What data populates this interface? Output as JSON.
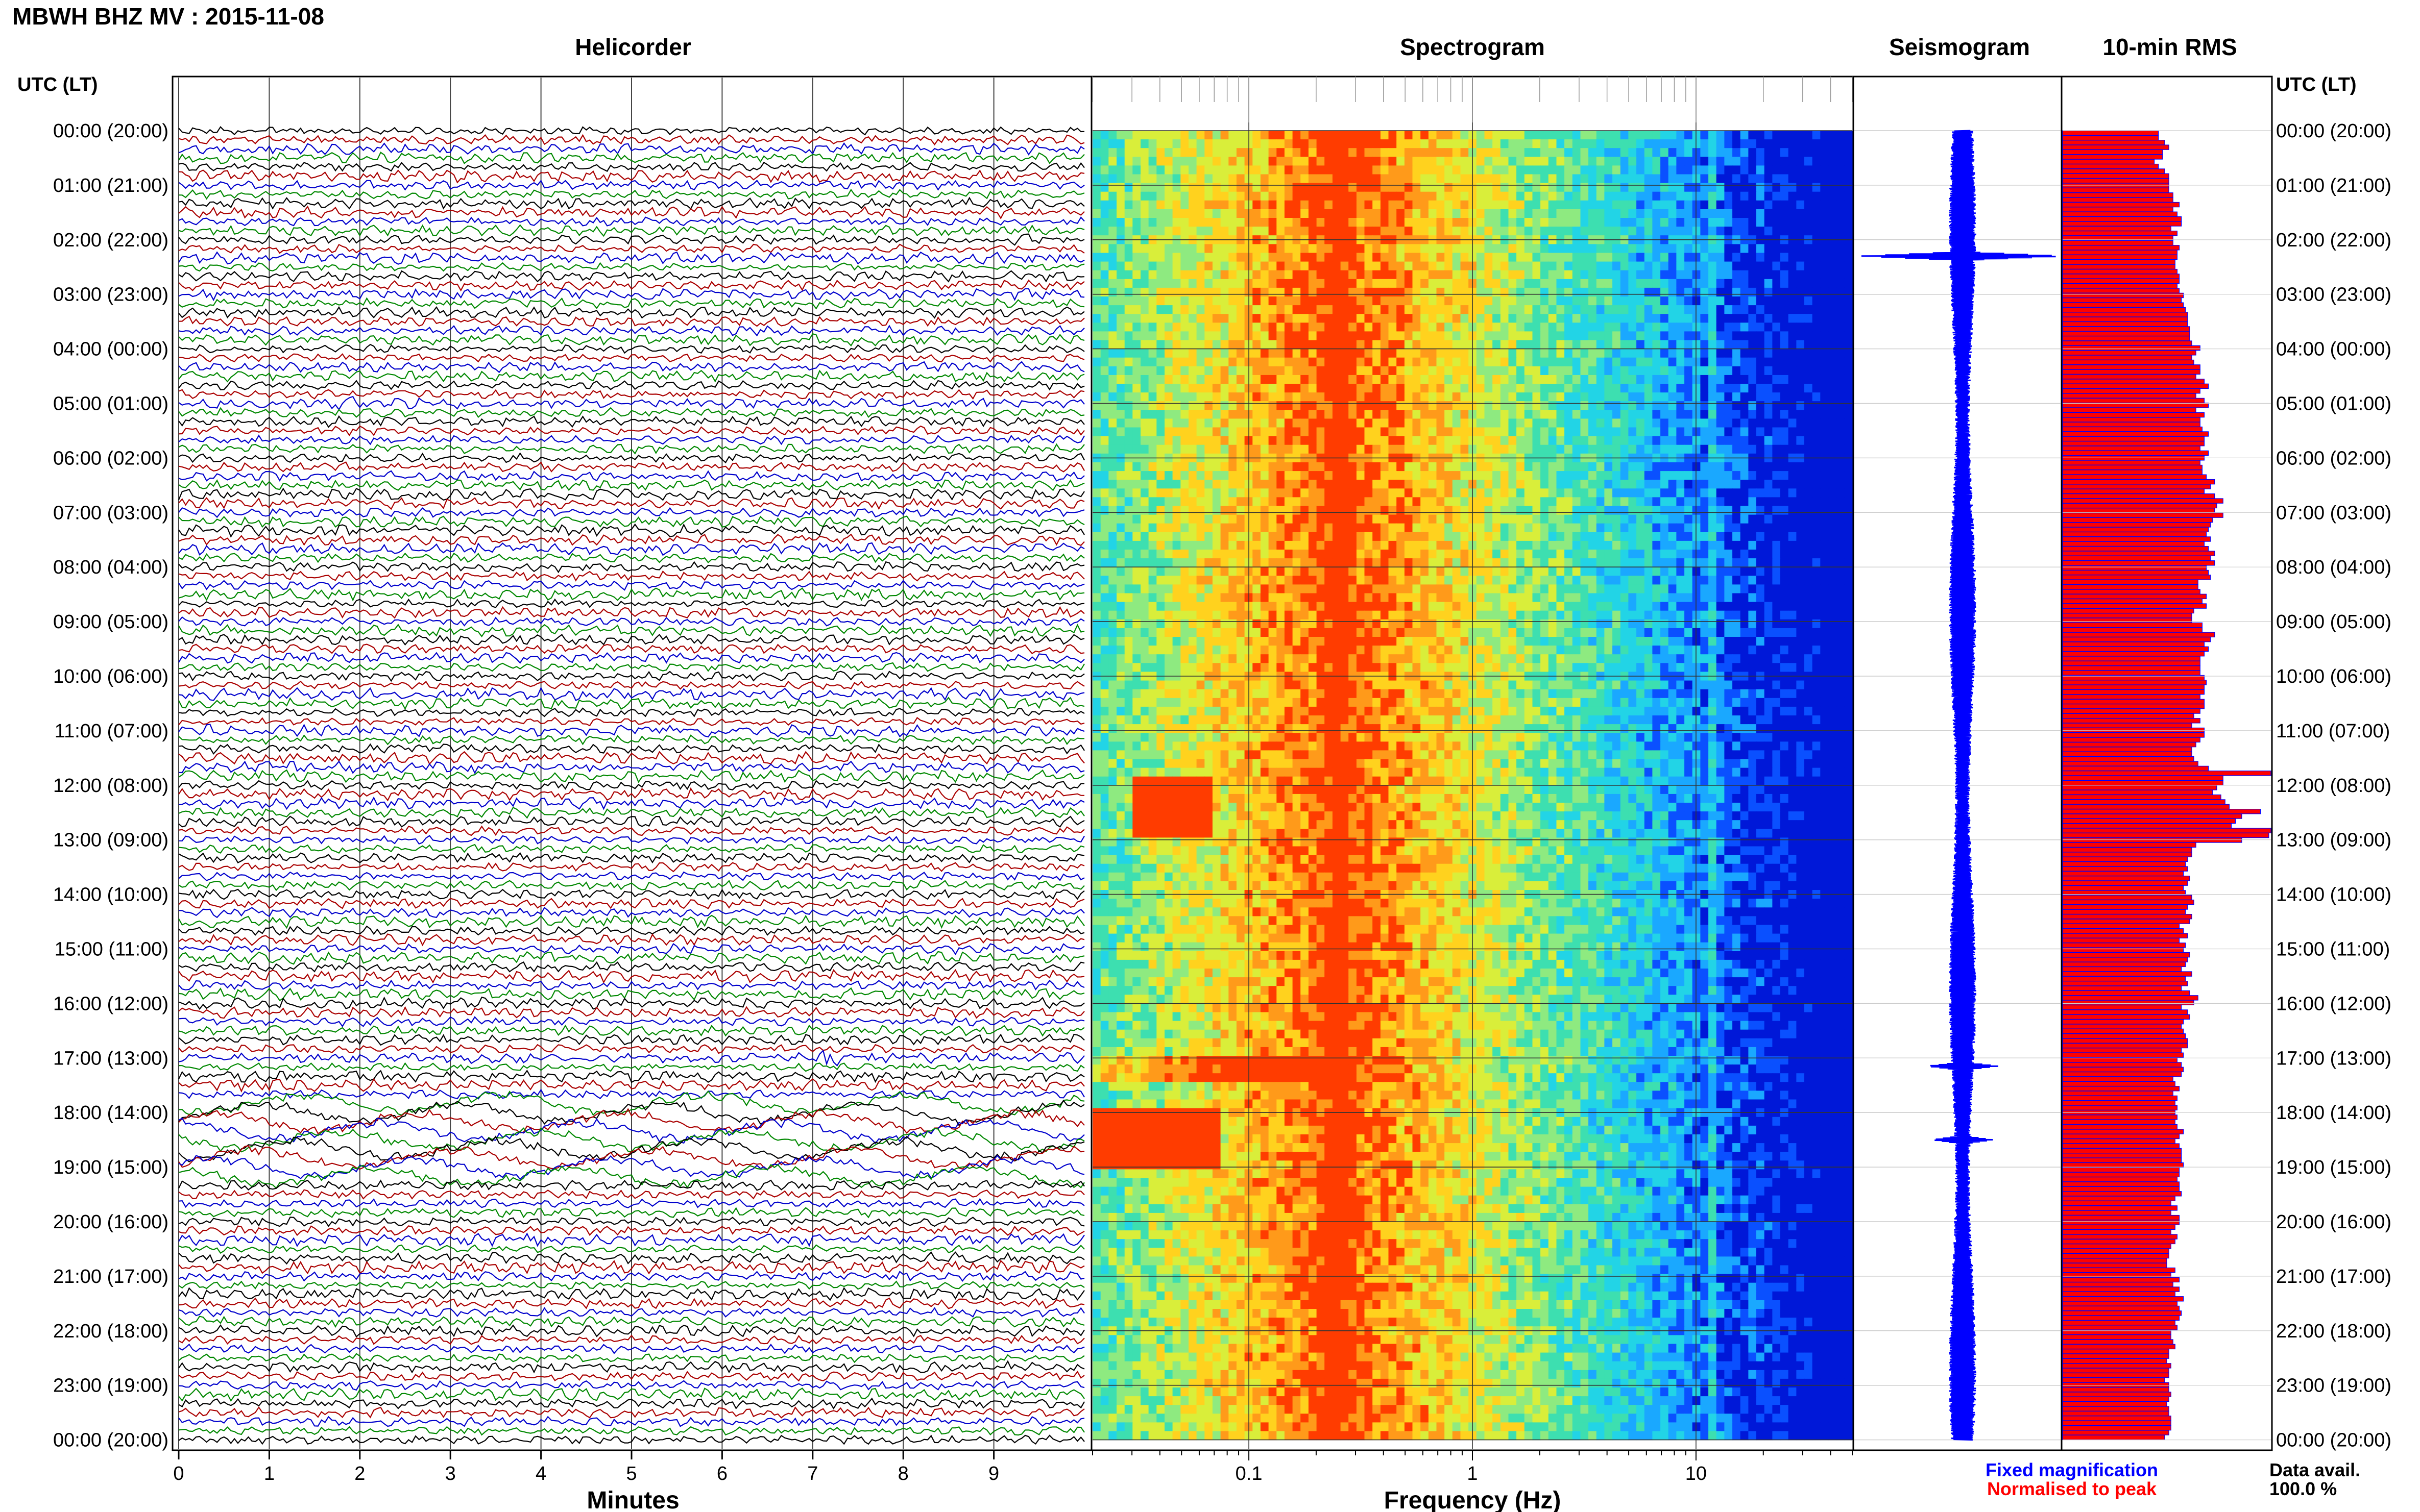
{
  "title": "MBWH BHZ MV : 2015-11-08",
  "panels": {
    "helicorder": "Helicorder",
    "spectrogram": "Spectrogram",
    "seismogram": "Seismogram",
    "rms": "10-min RMS"
  },
  "time_axis_header": "UTC (LT)",
  "hour_labels": [
    "00:00 (20:00)",
    "01:00 (21:00)",
    "02:00 (22:00)",
    "03:00 (23:00)",
    "04:00 (00:00)",
    "05:00 (01:00)",
    "06:00 (02:00)",
    "07:00 (03:00)",
    "08:00 (04:00)",
    "09:00 (05:00)",
    "10:00 (06:00)",
    "11:00 (07:00)",
    "12:00 (08:00)",
    "13:00 (09:00)",
    "14:00 (10:00)",
    "15:00 (11:00)",
    "16:00 (12:00)",
    "17:00 (13:00)",
    "18:00 (14:00)",
    "19:00 (15:00)",
    "20:00 (16:00)",
    "21:00 (17:00)",
    "22:00 (18:00)",
    "23:00 (19:00)",
    "00:00 (20:00)"
  ],
  "legend": {
    "fixed": "Fixed magnification",
    "normalised": "Normalised to peak"
  },
  "data_avail": {
    "label": "Data avail.",
    "value": "100.0 %"
  },
  "colors": {
    "trace_cycle": [
      "#000000",
      "#aa0000",
      "#0000cc",
      "#008800"
    ],
    "seismogram": "#0000ff",
    "rms_fill": "#ff0000",
    "rms_edge": "#0000ff"
  },
  "chart_data": [
    {
      "type": "line",
      "panel": "helicorder",
      "xlabel": "Minutes",
      "x_ticks": [
        0,
        1,
        2,
        3,
        4,
        5,
        6,
        7,
        8,
        9
      ],
      "xlim": [
        0,
        10
      ],
      "traces_per_hour": 6,
      "hours": 24,
      "events": [
        {
          "hour": 2,
          "minute": 9.3,
          "note": "red spike"
        },
        {
          "hour": 5,
          "minute": 1.8,
          "note": "red spike"
        },
        {
          "hour": 17,
          "minute": 7.2,
          "note": "blue burst"
        },
        {
          "hour": 18,
          "minute": 0.0,
          "note": "long-period oscillation"
        }
      ]
    },
    {
      "type": "heatmap",
      "panel": "spectrogram",
      "xlabel": "Frequency (Hz)",
      "xscale": "log",
      "x_ticks": [
        0.1,
        1,
        10
      ],
      "x_tick_labels": [
        "0.1",
        "1",
        "10"
      ],
      "xlim": [
        0.02,
        50
      ],
      "peak_band_hz": 0.25,
      "secondary_line_hz": 12,
      "colormap": [
        "#0018d8",
        "#0a50ff",
        "#1aa8ff",
        "#22d4e6",
        "#3ddfb0",
        "#8eea80",
        "#d9ee3a",
        "#ffd21e",
        "#ff9a1a",
        "#ff3c00"
      ],
      "bursts": [
        {
          "hour_start": 11.7,
          "hour_end": 12.9,
          "freq_low": 0.03,
          "freq_high": 0.07
        },
        {
          "hour_start": 17.9,
          "hour_end": 19.0,
          "freq_low": 0.02,
          "freq_high": 0.075
        }
      ]
    },
    {
      "type": "line",
      "panel": "seismogram",
      "envelope_events": [
        {
          "hour": 2.3,
          "amplitude": 1.0
        },
        {
          "hour": 17.15,
          "amplitude": 0.35
        },
        {
          "hour": 18.5,
          "amplitude": 0.3
        }
      ]
    },
    {
      "type": "bar",
      "panel": "rms",
      "orientation": "horizontal",
      "series": [
        {
          "values": [
            0.46,
            0.46,
            0.49,
            0.51,
            0.48,
            0.48,
            0.44,
            0.46,
            0.49,
            0.51,
            0.51,
            0.51,
            0.51,
            0.53,
            0.53,
            0.56,
            0.53,
            0.55,
            0.57,
            0.57,
            0.52,
            0.55,
            0.53,
            0.53,
            0.56,
            0.55,
            0.55,
            0.54,
            0.54,
            0.55,
            0.56,
            0.56,
            0.55,
            0.56,
            0.58,
            0.57,
            0.58,
            0.59,
            0.6,
            0.6,
            0.6,
            0.61,
            0.61,
            0.61,
            0.62,
            0.66,
            0.64,
            0.62,
            0.63,
            0.66,
            0.66,
            0.64,
            0.68,
            0.7,
            0.66,
            0.64,
            0.68,
            0.7,
            0.64,
            0.68,
            0.66,
            0.66,
            0.67,
            0.7,
            0.68,
            0.68,
            0.66,
            0.7,
            0.68,
            0.66,
            0.67,
            0.67,
            0.69,
            0.73,
            0.71,
            0.68,
            0.73,
            0.77,
            0.74,
            0.73,
            0.77,
            0.72,
            0.71,
            0.7,
            0.69,
            0.71,
            0.68,
            0.7,
            0.73,
            0.71,
            0.73,
            0.69,
            0.7,
            0.71,
            0.65,
            0.65,
            0.66,
            0.69,
            0.67,
            0.69,
            0.63,
            0.62,
            0.62,
            0.67,
            0.67,
            0.73,
            0.71,
            0.68,
            0.7,
            0.68,
            0.66,
            0.66,
            0.66,
            0.66,
            0.68,
            0.69,
            0.68,
            0.68,
            0.66,
            0.68,
            0.68,
            0.66,
            0.63,
            0.66,
            0.62,
            0.68,
            0.68,
            0.66,
            0.64,
            0.62,
            0.62,
            0.63,
            0.65,
            0.7,
            1.0,
            0.77,
            0.77,
            0.74,
            0.72,
            0.76,
            0.78,
            0.8,
            0.95,
            0.86,
            0.83,
            0.81,
            1.0,
            0.99,
            0.86,
            0.64,
            0.62,
            0.62,
            0.6,
            0.59,
            0.6,
            0.58,
            0.61,
            0.6,
            0.58,
            0.59,
            0.62,
            0.63,
            0.6,
            0.59,
            0.62,
            0.61,
            0.56,
            0.58,
            0.6,
            0.56,
            0.59,
            0.58,
            0.61,
            0.6,
            0.59,
            0.57,
            0.62,
            0.59,
            0.6,
            0.57,
            0.61,
            0.65,
            0.63,
            0.57,
            0.6,
            0.61,
            0.58,
            0.57,
            0.58,
            0.59,
            0.6,
            0.6,
            0.57,
            0.58,
            0.55,
            0.57,
            0.58,
            0.57,
            0.53,
            0.54,
            0.56,
            0.53,
            0.55,
            0.54,
            0.55,
            0.54,
            0.55,
            0.54,
            0.55,
            0.58,
            0.56,
            0.54,
            0.56,
            0.57,
            0.57,
            0.57,
            0.58,
            0.56,
            0.56,
            0.55,
            0.56,
            0.56,
            0.57,
            0.54,
            0.52,
            0.55,
            0.52,
            0.56,
            0.56,
            0.54,
            0.52,
            0.55,
            0.54,
            0.52,
            0.51,
            0.51,
            0.5,
            0.5,
            0.54,
            0.52,
            0.56,
            0.53,
            0.56,
            0.54,
            0.58,
            0.55,
            0.56,
            0.57,
            0.56,
            0.54,
            0.55,
            0.52,
            0.52,
            0.53,
            0.54,
            0.51,
            0.51,
            0.5,
            0.52,
            0.51,
            0.51,
            0.49,
            0.51,
            0.51,
            0.52,
            0.51,
            0.5,
            0.51,
            0.51,
            0.52,
            0.52,
            0.52,
            0.51,
            0.49
          ]
        }
      ],
      "xlim": [
        0,
        1
      ]
    }
  ]
}
